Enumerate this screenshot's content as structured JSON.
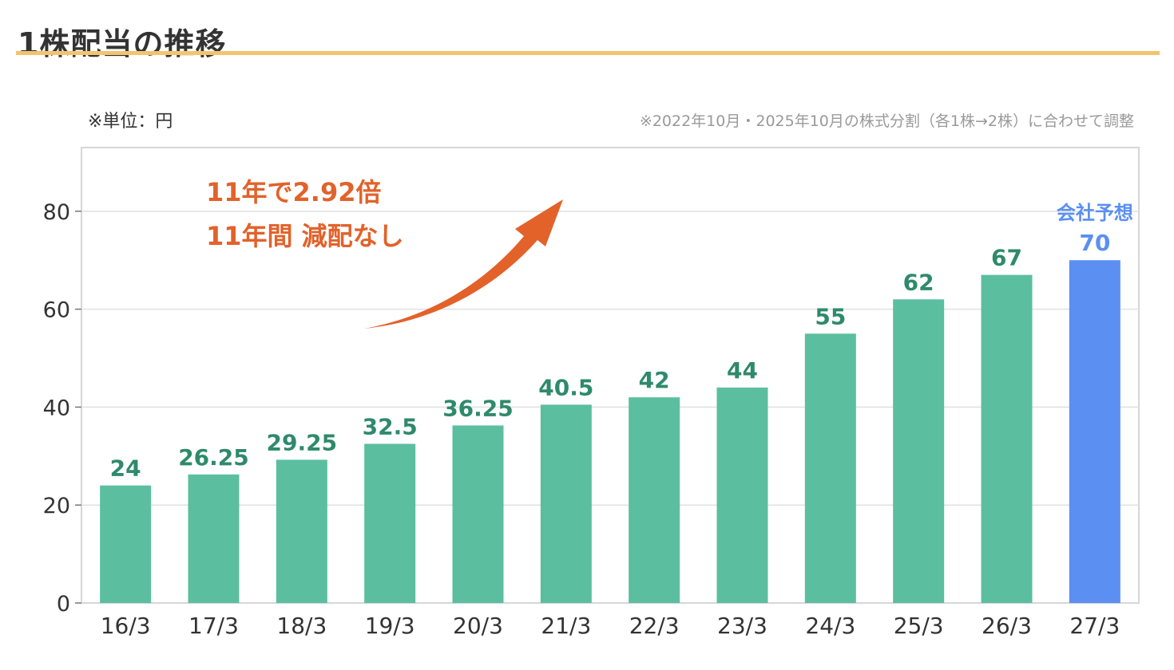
{
  "header": {
    "title": "1株配当の推移"
  },
  "notes": {
    "unit": "※単位：円",
    "split": "※2022年10月・2025年10月の株式分割（各1株→2株）に合わせて調整"
  },
  "annotation": {
    "line1": "11年で2.92倍",
    "line2": "11年間 減配なし"
  },
  "colors": {
    "bar": "#5bbf9f",
    "forecast_bar": "#5b8ff2",
    "label": "#2e8a6a",
    "forecast_label": "#5b8ff2",
    "accent": "#e2622a",
    "title_rule": "#f2c46e"
  },
  "chart_data": {
    "type": "bar",
    "categories": [
      "16/3",
      "17/3",
      "18/3",
      "19/3",
      "20/3",
      "21/3",
      "22/3",
      "23/3",
      "24/3",
      "25/3",
      "26/3",
      "27/3"
    ],
    "values": [
      24,
      26.25,
      29.25,
      32.5,
      36.25,
      40.5,
      42,
      44,
      55,
      62,
      67,
      70
    ],
    "data_labels": [
      "24",
      "26.25",
      "29.25",
      "32.5",
      "36.25",
      "40.5",
      "42",
      "44",
      "55",
      "62",
      "67",
      "70"
    ],
    "forecast_index": 11,
    "forecast_label": "会社予想",
    "ylim": [
      0,
      93
    ],
    "yticks": [
      0,
      20,
      40,
      60,
      80
    ],
    "grid": true,
    "xlabel": "",
    "ylabel": ""
  }
}
